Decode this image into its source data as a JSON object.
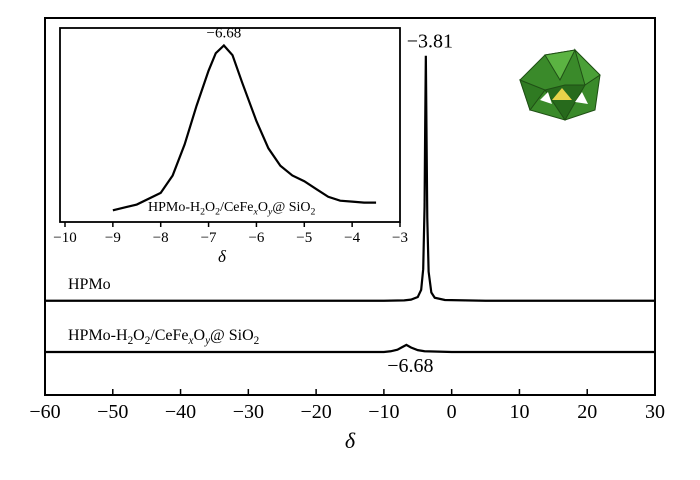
{
  "chart_data": {
    "type": "line",
    "xlim": [
      -60,
      30
    ],
    "xticks": [
      {
        "value": -60,
        "label": "−60"
      },
      {
        "value": -50,
        "label": "−50"
      },
      {
        "value": -40,
        "label": "−40"
      },
      {
        "value": -30,
        "label": "−30"
      },
      {
        "value": -20,
        "label": "−20"
      },
      {
        "value": -10,
        "label": "−10"
      },
      0,
      10,
      20,
      30
    ],
    "ylim": [
      0,
      100
    ],
    "xlabel": "δ",
    "series": [
      {
        "name": "HPMo",
        "color": "#000000",
        "x": [
          -60,
          -20,
          -10,
          -7,
          -6,
          -5,
          -4.5,
          -4.2,
          -4.0,
          -3.9,
          -3.81,
          -3.7,
          -3.6,
          -3.4,
          -3,
          -2.5,
          -1,
          5,
          30
        ],
        "values": [
          25,
          25,
          25,
          25.1,
          25.3,
          26,
          27.9,
          33.4,
          50,
          72.8,
          90,
          67.2,
          47,
          32.7,
          27.2,
          25.8,
          25.2,
          25,
          25
        ],
        "peak_label": {
          "x": -3.81,
          "label": "−3.81"
        }
      },
      {
        "name_parts": [
          "HPMo-H",
          "2",
          "O",
          "2",
          "/CeFe",
          "x",
          "O",
          "y",
          "@ SiO",
          "2"
        ],
        "color": "#000000",
        "x": [
          -60,
          -10,
          -9,
          -8,
          -7.3,
          -6.68,
          -6,
          -5,
          -4,
          0,
          30
        ],
        "values": [
          11.4,
          11.4,
          11.6,
          12.0,
          12.7,
          13.3,
          12.6,
          11.9,
          11.6,
          11.4,
          11.4
        ],
        "peak_label": {
          "x": -6.68,
          "label": "−6.68"
        }
      }
    ],
    "inset": {
      "type": "line",
      "xlim": [
        -10,
        -3
      ],
      "xticks": [
        {
          "value": -10,
          "label": "−10"
        },
        {
          "value": -9,
          "label": "−9"
        },
        {
          "value": -8,
          "label": "−8"
        },
        {
          "value": -7,
          "label": "−7"
        },
        {
          "value": -6,
          "label": "−6"
        },
        {
          "value": -5,
          "label": "−5"
        },
        {
          "value": -4,
          "label": "−4"
        },
        {
          "value": -3,
          "label": "−3"
        }
      ],
      "ylim": [
        0,
        100
      ],
      "xlabel": "δ",
      "series": [
        {
          "name_parts": [
            "HPMo-H",
            "2",
            "O",
            "2",
            "/CeFe",
            "x",
            "O",
            "y",
            "@ SiO",
            "2"
          ],
          "color": "#000000",
          "x": [
            -9,
            -8.5,
            -8,
            -7.75,
            -7.5,
            -7.25,
            -7,
            -6.85,
            -6.68,
            -6.5,
            -6.3,
            -6,
            -5.75,
            -5.5,
            -5.25,
            -5,
            -4.75,
            -4.5,
            -4.25,
            -4,
            -3.75,
            -3.5
          ],
          "values": [
            6,
            9,
            15,
            24,
            40,
            60,
            78,
            87,
            91,
            86,
            72,
            52,
            38,
            29,
            24,
            21,
            17,
            13,
            11,
            10.5,
            10,
            10
          ],
          "peak_label": {
            "x": -6.68,
            "label": "−6.68"
          }
        }
      ]
    }
  }
}
